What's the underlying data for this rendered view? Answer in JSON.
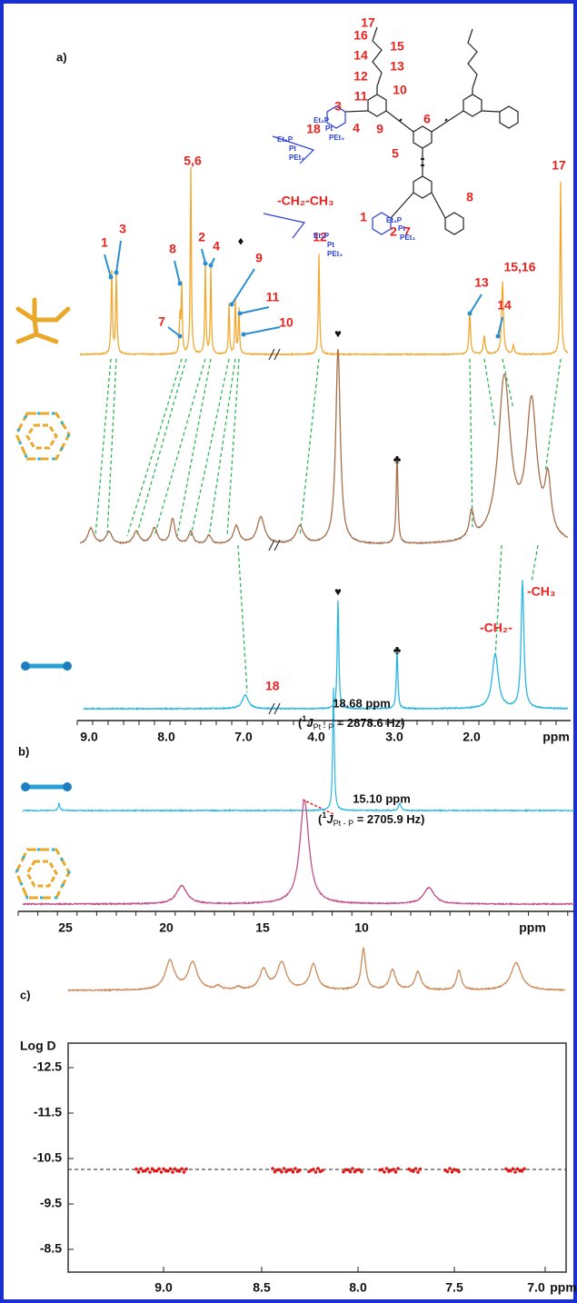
{
  "panel_a": {
    "label": "a)",
    "peak_labels": [
      "1",
      "3",
      "8",
      "5,6",
      "2",
      "4",
      "9",
      "11",
      "10",
      "7",
      "12",
      "13",
      "14",
      "15,16",
      "17"
    ],
    "symbols": [
      "♦",
      "♥",
      "♣",
      "♥",
      "♣"
    ],
    "structure_labels": [
      "17",
      "16",
      "15",
      "14",
      "13",
      "12",
      "11",
      "10",
      "3",
      "9",
      "6",
      "5",
      "4",
      "18",
      "8",
      "1",
      "2",
      "7"
    ],
    "ethyl_label": "-CH₂-CH₃",
    "blue_labels": [
      "Et₃P",
      "Pt",
      "PEt₃",
      "Et₃P",
      "Pt",
      "PEt₃",
      "Et₃P",
      "Pt",
      "PEt₃",
      "Et₃P",
      "Pt",
      "PEt₃"
    ],
    "annotations": [
      "-CH₃",
      "-CH₂-",
      "18"
    ],
    "x_ticks": [
      "9.0",
      "8.0",
      "7.0",
      "4.0",
      "3.0",
      "2.0"
    ],
    "x_unit": "ppm"
  },
  "panel_b": {
    "label": "b)",
    "peaks": [
      {
        "shift": "18.68 ppm",
        "open": "(",
        "sup": "1",
        "symbol": "J",
        "sub": "Pt - P",
        "rest": " = 2878.6 Hz)"
      },
      {
        "shift": "15.10 ppm",
        "open": "(",
        "sup": "1",
        "symbol": "J",
        "sub": "Pt - P",
        "rest": " = 2705.9 Hz)"
      }
    ],
    "x_ticks": [
      "25",
      "20",
      "15",
      "10"
    ],
    "x_unit": "ppm"
  },
  "panel_c": {
    "label": "c)",
    "y_title": "Log D",
    "y_ticks": [
      "-12.5",
      "-11.5",
      "-10.5",
      "-9.5",
      "-8.5"
    ],
    "x_ticks": [
      "9.0",
      "8.5",
      "8.0",
      "7.5",
      "7.0"
    ],
    "x_unit": "ppm"
  }
}
